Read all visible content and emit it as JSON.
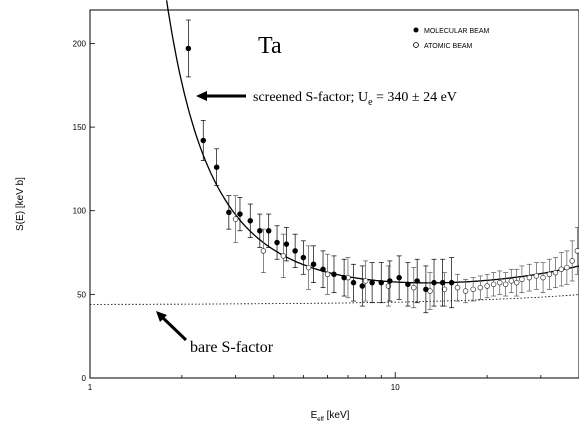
{
  "chart_data": {
    "type": "scatter",
    "xlabel": "E",
    "xlabel_sub": "eff",
    "xlabel_unit": " [keV]",
    "ylabel": "S(E) [keV b]",
    "x_scale": "log",
    "xlim": [
      1,
      40
    ],
    "ylim": [
      0,
      220
    ],
    "x_ticks": [
      {
        "value": 1,
        "label": "1"
      },
      {
        "value": 10,
        "label": "10"
      }
    ],
    "y_ticks": [
      {
        "value": 0,
        "label": "0"
      },
      {
        "value": 50,
        "label": "50"
      },
      {
        "value": 100,
        "label": "100"
      },
      {
        "value": 150,
        "label": "150"
      },
      {
        "value": 200,
        "label": "200"
      }
    ],
    "element_label": "Ta",
    "legend": {
      "placement": "top-right",
      "entries": [
        {
          "marker": "filled-circle",
          "label": "MOLECULAR BEAM"
        },
        {
          "marker": "open-circle",
          "label": "ATOMIC BEAM"
        }
      ]
    },
    "annotations": {
      "screened": {
        "prefix": "screened S-factor; U",
        "sub": "e",
        "suffix": " = 340 ± 24 eV"
      },
      "bare": "bare S-factor"
    },
    "fit": {
      "screening_energy_eV": 340,
      "bare_S": 44
    },
    "series": [
      {
        "name": "MOLECULAR BEAM",
        "marker": "filled",
        "points": [
          {
            "x": 2.1,
            "y": 197,
            "err": 17
          },
          {
            "x": 2.35,
            "y": 142,
            "err": 12
          },
          {
            "x": 2.6,
            "y": 126,
            "err": 11
          },
          {
            "x": 2.85,
            "y": 99,
            "err": 10
          },
          {
            "x": 3.1,
            "y": 98,
            "err": 10
          },
          {
            "x": 3.35,
            "y": 94,
            "err": 10
          },
          {
            "x": 3.6,
            "y": 88,
            "err": 10
          },
          {
            "x": 3.85,
            "y": 88,
            "err": 10
          },
          {
            "x": 4.1,
            "y": 81,
            "err": 10
          },
          {
            "x": 4.4,
            "y": 80,
            "err": 10
          },
          {
            "x": 4.7,
            "y": 76,
            "err": 10
          },
          {
            "x": 5.0,
            "y": 72,
            "err": 10
          },
          {
            "x": 5.4,
            "y": 68,
            "err": 11
          },
          {
            "x": 5.8,
            "y": 65,
            "err": 11
          },
          {
            "x": 6.3,
            "y": 62,
            "err": 11
          },
          {
            "x": 6.8,
            "y": 60,
            "err": 11
          },
          {
            "x": 7.3,
            "y": 57,
            "err": 11
          },
          {
            "x": 7.8,
            "y": 55,
            "err": 12
          },
          {
            "x": 8.4,
            "y": 57,
            "err": 12
          },
          {
            "x": 9.0,
            "y": 57,
            "err": 12
          },
          {
            "x": 9.6,
            "y": 58,
            "err": 12
          },
          {
            "x": 10.3,
            "y": 60,
            "err": 13
          },
          {
            "x": 11.0,
            "y": 56,
            "err": 13
          },
          {
            "x": 11.8,
            "y": 58,
            "err": 13
          },
          {
            "x": 12.6,
            "y": 53,
            "err": 14
          },
          {
            "x": 13.4,
            "y": 57,
            "err": 14
          },
          {
            "x": 14.3,
            "y": 57,
            "err": 14
          },
          {
            "x": 15.3,
            "y": 57,
            "err": 15
          }
        ]
      },
      {
        "name": "ATOMIC BEAM",
        "marker": "open",
        "points": [
          {
            "x": 3.0,
            "y": 95,
            "err": 14
          },
          {
            "x": 3.7,
            "y": 76,
            "err": 13
          },
          {
            "x": 4.3,
            "y": 73,
            "err": 13
          },
          {
            "x": 5.2,
            "y": 66,
            "err": 13
          },
          {
            "x": 6.0,
            "y": 62,
            "err": 12
          },
          {
            "x": 7.0,
            "y": 60,
            "err": 12
          },
          {
            "x": 8.0,
            "y": 58,
            "err": 12
          },
          {
            "x": 9.5,
            "y": 55,
            "err": 12
          },
          {
            "x": 11.5,
            "y": 54,
            "err": 12
          },
          {
            "x": 13.0,
            "y": 52,
            "err": 11
          },
          {
            "x": 14.5,
            "y": 53,
            "err": 10
          },
          {
            "x": 16.0,
            "y": 54,
            "err": 8
          },
          {
            "x": 17.0,
            "y": 52,
            "err": 7
          },
          {
            "x": 18.0,
            "y": 53,
            "err": 7
          },
          {
            "x": 19.0,
            "y": 54,
            "err": 7
          },
          {
            "x": 20.0,
            "y": 55,
            "err": 7
          },
          {
            "x": 21.0,
            "y": 56,
            "err": 7
          },
          {
            "x": 22.0,
            "y": 57,
            "err": 7
          },
          {
            "x": 23.0,
            "y": 56,
            "err": 7
          },
          {
            "x": 24.0,
            "y": 58,
            "err": 7
          },
          {
            "x": 25.0,
            "y": 57,
            "err": 8
          },
          {
            "x": 26.0,
            "y": 59,
            "err": 8
          },
          {
            "x": 27.5,
            "y": 60,
            "err": 8
          },
          {
            "x": 29.0,
            "y": 61,
            "err": 8
          },
          {
            "x": 30.5,
            "y": 60,
            "err": 9
          },
          {
            "x": 32.0,
            "y": 62,
            "err": 9
          },
          {
            "x": 33.5,
            "y": 63,
            "err": 9
          },
          {
            "x": 35.0,
            "y": 65,
            "err": 10
          },
          {
            "x": 36.5,
            "y": 66,
            "err": 10
          },
          {
            "x": 38.0,
            "y": 70,
            "err": 12
          },
          {
            "x": 39.5,
            "y": 76,
            "err": 14
          }
        ]
      }
    ]
  }
}
